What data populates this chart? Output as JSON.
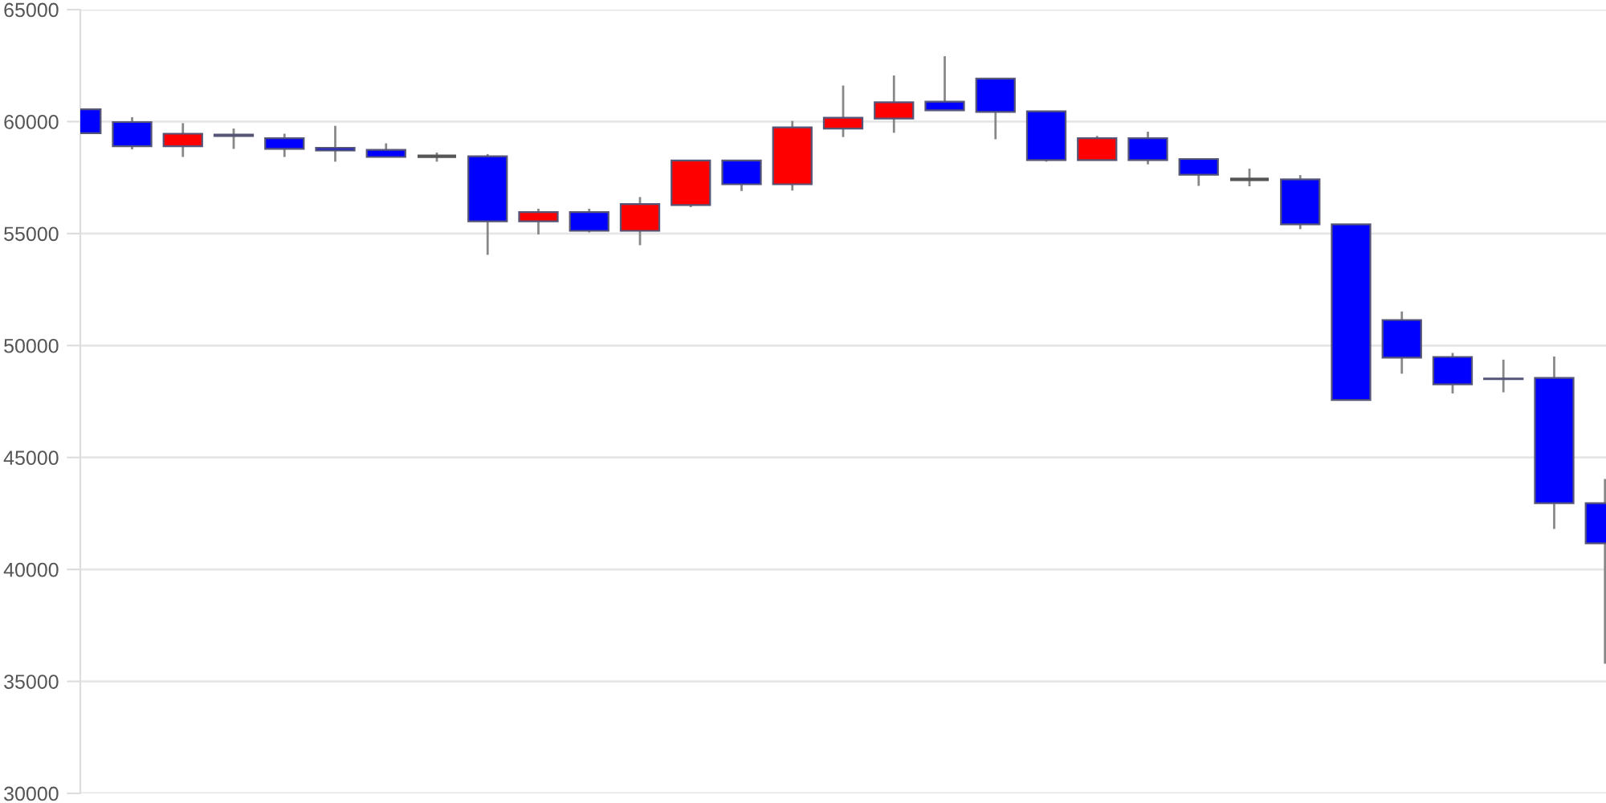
{
  "chart_data": {
    "type": "candlestick",
    "categories": [
      null,
      null,
      null,
      null,
      null,
      null,
      null,
      null,
      null,
      null,
      null,
      null,
      null,
      null,
      null,
      null,
      null,
      null,
      null,
      null,
      null,
      null,
      null,
      null,
      null,
      null,
      null,
      null,
      null,
      null,
      null
    ],
    "ohlc": [
      [
        60550,
        60550,
        59480,
        59480
      ],
      [
        59980,
        60200,
        58760,
        58900
      ],
      [
        58900,
        59930,
        58420,
        59460
      ],
      [
        59420,
        59690,
        58780,
        59360
      ],
      [
        59260,
        59460,
        58420,
        58780
      ],
      [
        58830,
        59810,
        58210,
        58710
      ],
      [
        58740,
        59030,
        58420,
        58420
      ],
      [
        58450,
        58620,
        58210,
        58450
      ],
      [
        58450,
        58550,
        54050,
        55550
      ],
      [
        55550,
        56110,
        54960,
        55960
      ],
      [
        55960,
        56110,
        55050,
        55120
      ],
      [
        55120,
        56630,
        54480,
        56320
      ],
      [
        56270,
        58260,
        56180,
        58260
      ],
      [
        58260,
        58260,
        56900,
        57200
      ],
      [
        57200,
        60030,
        56920,
        59740
      ],
      [
        59690,
        61610,
        59310,
        60170
      ],
      [
        60140,
        62060,
        59500,
        60860
      ],
      [
        60890,
        62920,
        60500,
        60500
      ],
      [
        61920,
        61920,
        59210,
        60430
      ],
      [
        60460,
        60460,
        58210,
        58280
      ],
      [
        58280,
        59360,
        58280,
        59260
      ],
      [
        59260,
        59550,
        58090,
        58280
      ],
      [
        58330,
        58330,
        57130,
        57630
      ],
      [
        57420,
        57900,
        57110,
        57420
      ],
      [
        57420,
        57610,
        55200,
        55410
      ],
      [
        55410,
        55410,
        47570,
        47570
      ],
      [
        51140,
        51520,
        48740,
        49460
      ],
      [
        49490,
        49670,
        47860,
        48270
      ],
      [
        48500,
        49370,
        47910,
        48530
      ],
      [
        48550,
        49510,
        41810,
        42960
      ],
      [
        42960,
        44040,
        35790,
        41170
      ]
    ],
    "colors": [
      "#0000ff",
      "#0000ff",
      "#ff0000",
      "#0000ff",
      "#0000ff",
      "#0000ff",
      "#0000ff",
      "#555555",
      "#0000ff",
      "#ff0000",
      "#0000ff",
      "#ff0000",
      "#ff0000",
      "#0000ff",
      "#ff0000",
      "#ff0000",
      "#ff0000",
      "#0000ff",
      "#0000ff",
      "#0000ff",
      "#ff0000",
      "#0000ff",
      "#0000ff",
      "#555555",
      "#0000ff",
      "#0000ff",
      "#0000ff",
      "#0000ff",
      "#8b1a1a",
      "#0000ff",
      "#0000ff"
    ],
    "ylim": [
      30000,
      65000
    ],
    "yticks": [
      30000,
      35000,
      40000,
      45000,
      50000,
      55000,
      60000,
      65000
    ],
    "grid": "y",
    "tick_labels": "y"
  }
}
